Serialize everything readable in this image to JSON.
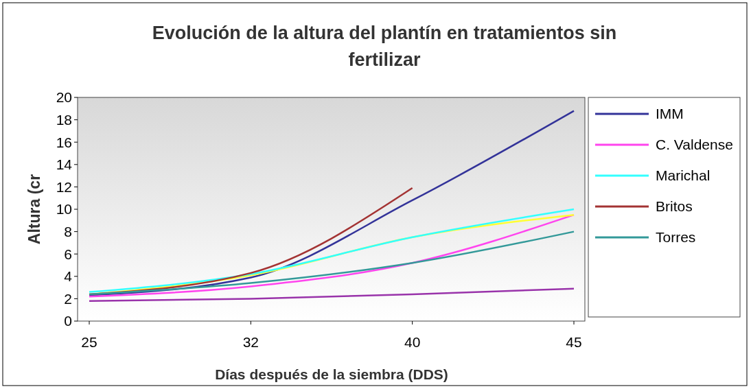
{
  "chart_data": {
    "type": "line",
    "title": "Evolución de la altura del plantín en tratamientos sin fertilizar",
    "xlabel": "Días después de la siembra (DDS)",
    "ylabel": "Altura (cr",
    "categories": [
      "25",
      "32",
      "40",
      "45"
    ],
    "ylim": [
      0,
      20
    ],
    "yticks": [
      0,
      2,
      4,
      6,
      8,
      10,
      12,
      14,
      16,
      18,
      20
    ],
    "legend": "right",
    "grid": false,
    "marker": "none",
    "line_style": "solid",
    "series": [
      {
        "name": "IMM",
        "color": "#333399",
        "values": [
          2.3,
          3.9,
          10.8,
          18.8
        ]
      },
      {
        "name": "C. Valdense",
        "color": "#ff44ee",
        "values": [
          2.2,
          3.1,
          5.2,
          9.5
        ]
      },
      {
        "color": "#ffff33",
        "values": [
          2.4,
          4.1,
          7.5,
          9.5
        ]
      },
      {
        "name": "Marichal",
        "color": "#33ffff",
        "values": [
          2.6,
          4.2,
          7.5,
          10.0
        ]
      },
      {
        "color": "#9933aa",
        "values": [
          1.8,
          2.0,
          2.4,
          2.9
        ]
      },
      {
        "name": "Britos",
        "color": "#a33333",
        "values": [
          2.4,
          4.3,
          11.9,
          null
        ]
      },
      {
        "name": "Torres",
        "color": "#339999",
        "values": [
          2.4,
          3.4,
          5.2,
          8.0
        ]
      }
    ]
  }
}
